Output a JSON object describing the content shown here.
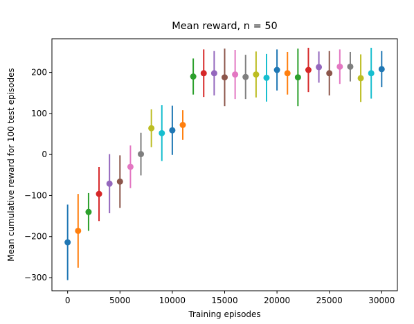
{
  "chart_data": {
    "type": "scatter",
    "title": "Mean reward, n = 50",
    "xlabel": "Training episodes",
    "ylabel": "Mean cumulative reward for 100 test episodes",
    "xlim": [
      -1500,
      31500
    ],
    "ylim": [
      -332,
      282
    ],
    "xticks": [
      0,
      5000,
      10000,
      15000,
      20000,
      25000,
      30000
    ],
    "xtick_labels": [
      "0",
      "5000",
      "10000",
      "15000",
      "20000",
      "25000",
      "30000"
    ],
    "yticks": [
      -300,
      -200,
      -100,
      0,
      100,
      200
    ],
    "ytick_labels": [
      "−300",
      "−200",
      "−100",
      "0",
      "100",
      "200"
    ],
    "grid": false,
    "legend": "none",
    "error_bars": true,
    "color_cycle": [
      "#1f77b4",
      "#ff7f0e",
      "#2ca02c",
      "#d62728",
      "#9467bd",
      "#8c564b",
      "#e377c2",
      "#7f7f7f",
      "#bcbd22",
      "#17becf"
    ],
    "points": [
      {
        "x": 0,
        "y": -214,
        "err": 92
      },
      {
        "x": 1000,
        "y": -186,
        "err": 90
      },
      {
        "x": 2000,
        "y": -140,
        "err": 46
      },
      {
        "x": 3000,
        "y": -96,
        "err": 66
      },
      {
        "x": 4000,
        "y": -71,
        "err": 72
      },
      {
        "x": 5000,
        "y": -66,
        "err": 64
      },
      {
        "x": 6000,
        "y": -30,
        "err": 52
      },
      {
        "x": 7000,
        "y": 1,
        "err": 52
      },
      {
        "x": 8000,
        "y": 64,
        "err": 46
      },
      {
        "x": 9000,
        "y": 52,
        "err": 68
      },
      {
        "x": 10000,
        "y": 59,
        "err": 60
      },
      {
        "x": 11000,
        "y": 72,
        "err": 36
      },
      {
        "x": 12000,
        "y": 190,
        "err": 44
      },
      {
        "x": 13000,
        "y": 198,
        "err": 58
      },
      {
        "x": 14000,
        "y": 198,
        "err": 54
      },
      {
        "x": 15000,
        "y": 188,
        "err": 70
      },
      {
        "x": 16000,
        "y": 195,
        "err": 60
      },
      {
        "x": 17000,
        "y": 189,
        "err": 54
      },
      {
        "x": 18000,
        "y": 195,
        "err": 56
      },
      {
        "x": 19000,
        "y": 187,
        "err": 58
      },
      {
        "x": 20000,
        "y": 206,
        "err": 50
      },
      {
        "x": 21000,
        "y": 198,
        "err": 52
      },
      {
        "x": 22000,
        "y": 188,
        "err": 70
      },
      {
        "x": 23000,
        "y": 206,
        "err": 54
      },
      {
        "x": 24000,
        "y": 213,
        "err": 38
      },
      {
        "x": 25000,
        "y": 198,
        "err": 54
      },
      {
        "x": 26000,
        "y": 214,
        "err": 42
      },
      {
        "x": 27000,
        "y": 214,
        "err": 36
      },
      {
        "x": 28000,
        "y": 186,
        "err": 58
      },
      {
        "x": 29000,
        "y": 198,
        "err": 62
      },
      {
        "x": 30000,
        "y": 208,
        "err": 44
      }
    ]
  }
}
